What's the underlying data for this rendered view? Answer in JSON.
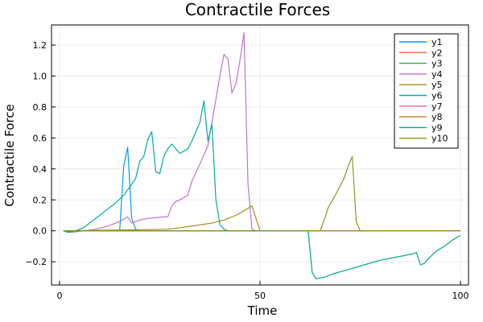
{
  "chart_data": {
    "type": "line",
    "title": "Contractile Forces",
    "xlabel": "Time",
    "ylabel": "Contractile Force",
    "xlim": [
      -2,
      102
    ],
    "ylim": [
      -0.35,
      1.33
    ],
    "xticks": [
      0,
      50,
      100
    ],
    "xtick_labels": [
      "0",
      "50",
      "100"
    ],
    "yticks": [
      -0.2,
      0.0,
      0.2,
      0.4,
      0.6,
      0.8,
      1.0,
      1.2
    ],
    "ytick_labels": [
      "−0.2",
      "0.0",
      "0.2",
      "0.4",
      "0.6",
      "0.8",
      "1.0",
      "1.2"
    ],
    "grid": true,
    "legend_position": "top-right",
    "series": [
      {
        "name": "y1",
        "color": "#009AFA",
        "x": [
          1,
          15,
          16,
          17,
          18,
          19,
          20,
          100
        ],
        "y": [
          0,
          0,
          0.42,
          0.54,
          0.08,
          0.01,
          0,
          0
        ]
      },
      {
        "name": "y2",
        "color": "#E36F47",
        "x": [
          1,
          100
        ],
        "y": [
          0,
          0
        ]
      },
      {
        "name": "y3",
        "color": "#3EA44E",
        "x": [
          1,
          100
        ],
        "y": [
          0,
          0
        ]
      },
      {
        "name": "y4",
        "color": "#C371D2",
        "x": [
          1,
          3,
          6,
          9,
          12,
          15,
          17,
          18,
          19,
          20,
          22,
          24,
          26,
          27,
          28,
          29,
          30,
          32,
          33,
          35,
          37,
          38,
          39,
          40,
          41,
          42,
          43,
          44,
          45,
          46,
          47,
          48,
          49,
          100
        ],
        "y": [
          0,
          -0.01,
          0,
          0.01,
          0.03,
          0.06,
          0.09,
          0.05,
          0.06,
          0.07,
          0.08,
          0.085,
          0.09,
          0.09,
          0.16,
          0.19,
          0.2,
          0.23,
          0.32,
          0.43,
          0.55,
          0.7,
          0.85,
          1.0,
          1.14,
          1.11,
          0.89,
          0.95,
          1.1,
          1.28,
          0.3,
          0.01,
          0,
          0
        ]
      },
      {
        "name": "y5",
        "color": "#AC8D18",
        "x": [
          1,
          27,
          33,
          38,
          41,
          44,
          46,
          48,
          50,
          52,
          100
        ],
        "y": [
          0,
          0.01,
          0.03,
          0.05,
          0.07,
          0.1,
          0.13,
          0.16,
          0,
          0,
          0
        ]
      },
      {
        "name": "y6",
        "color": "#00A9AD",
        "x": [
          1,
          2,
          4,
          6,
          8,
          10,
          12,
          14,
          16,
          18,
          19,
          20,
          21,
          22,
          23,
          24,
          25,
          26,
          27,
          28,
          30,
          32,
          33,
          35,
          36,
          37,
          38,
          39,
          40,
          41,
          42,
          43,
          100
        ],
        "y": [
          0,
          -0.01,
          0,
          0.02,
          0.06,
          0.1,
          0.14,
          0.18,
          0.23,
          0.3,
          0.34,
          0.45,
          0.48,
          0.59,
          0.64,
          0.38,
          0.37,
          0.48,
          0.53,
          0.56,
          0.5,
          0.53,
          0.58,
          0.7,
          0.84,
          0.58,
          0.69,
          0.2,
          0.04,
          0.01,
          0,
          0,
          0
        ]
      },
      {
        "name": "y7",
        "color": "#ED5D92",
        "x": [
          1,
          100
        ],
        "y": [
          0,
          0
        ]
      },
      {
        "name": "y8",
        "color": "#C68225",
        "x": [
          1,
          100
        ],
        "y": [
          0,
          0
        ]
      },
      {
        "name": "y9",
        "color": "#00A98D",
        "x": [
          1,
          62,
          63,
          64,
          66,
          68,
          72,
          76,
          80,
          84,
          88,
          89,
          90,
          91,
          92,
          94,
          96,
          98,
          100
        ],
        "y": [
          0,
          0,
          -0.27,
          -0.31,
          -0.3,
          -0.28,
          -0.25,
          -0.22,
          -0.19,
          -0.17,
          -0.15,
          -0.14,
          -0.22,
          -0.21,
          -0.18,
          -0.13,
          -0.1,
          -0.06,
          -0.03
        ]
      },
      {
        "name": "y10",
        "color": "#8E971D",
        "x": [
          1,
          65,
          66,
          67,
          69,
          71,
          72,
          73,
          74,
          75,
          100
        ],
        "y": [
          0,
          0,
          0.07,
          0.15,
          0.24,
          0.34,
          0.42,
          0.48,
          0.06,
          0,
          0
        ]
      }
    ]
  }
}
